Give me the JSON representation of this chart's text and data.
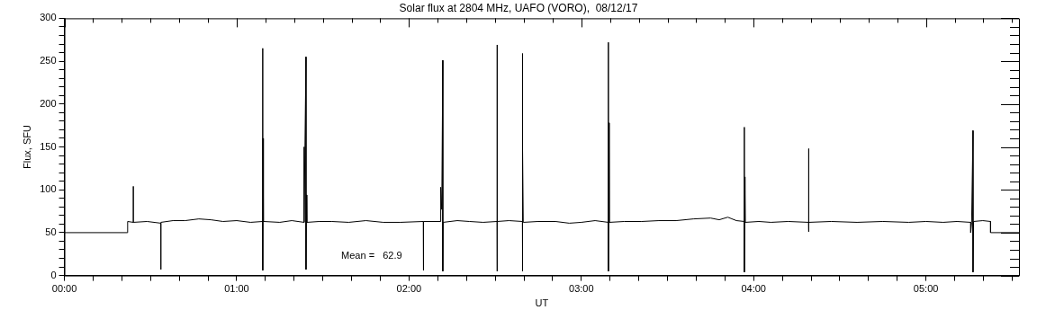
{
  "chart_data": {
    "type": "line",
    "title": "Solar flux at 2804 MHz, UAFO (VORO),  08/12/17",
    "xlabel": "UT",
    "ylabel": "Flux, SFU",
    "annotations": [
      "Mean =   62.9"
    ],
    "x": [
      0,
      0.367,
      0.367,
      0.4,
      0.4,
      0.4,
      0.48,
      0.56,
      0.56,
      0.56,
      0.63,
      0.7,
      0.78,
      0.85,
      0.92,
      1.0,
      1.08,
      1.151,
      1.151,
      1.151,
      1.153,
      1.155,
      1.25,
      1.32,
      1.391,
      1.391,
      1.391,
      1.402,
      1.402,
      1.405,
      1.407,
      1.48,
      1.55,
      1.65,
      1.75,
      1.85,
      1.95,
      2.083,
      2.083,
      2.085,
      2.184,
      2.184,
      2.19,
      2.196,
      2.196,
      2.198,
      2.28,
      2.35,
      2.43,
      2.511,
      2.511,
      2.511,
      2.513,
      2.58,
      2.658,
      2.658,
      2.658,
      2.661,
      2.663,
      2.75,
      2.85,
      2.93,
      3.0,
      3.08,
      3.157,
      3.157,
      3.157,
      3.16,
      3.162,
      3.25,
      3.35,
      3.45,
      3.55,
      3.65,
      3.75,
      3.8,
      3.85,
      3.9,
      3.946,
      3.946,
      3.946,
      3.95,
      3.952,
      4.03,
      4.1,
      4.2,
      4.319,
      4.319,
      4.319,
      4.321,
      4.45,
      4.6,
      4.75,
      4.9,
      5.0,
      5.1,
      5.18,
      5.26,
      5.26,
      5.265,
      5.273,
      5.273,
      5.276,
      5.33,
      5.375,
      5.375,
      5.54
    ],
    "values": [
      50,
      50,
      63,
      62,
      104,
      62,
      63,
      61,
      7,
      62,
      64,
      64,
      66,
      65,
      63,
      64,
      62,
      63,
      265,
      6,
      160,
      63,
      62,
      64,
      62,
      150,
      62,
      255,
      7,
      94,
      62,
      63,
      63,
      62,
      64,
      62,
      62,
      63,
      6,
      63,
      63,
      103,
      77,
      251,
      5,
      62,
      64,
      63,
      62,
      63,
      269,
      5,
      63,
      64,
      63,
      259,
      5,
      146,
      62,
      63,
      63,
      61,
      62,
      64,
      62,
      272,
      5,
      178,
      62,
      63,
      63,
      64,
      64,
      66,
      67,
      65,
      68,
      64,
      63,
      173,
      4,
      115,
      62,
      63,
      62,
      63,
      62,
      148,
      51,
      62,
      63,
      62,
      63,
      62,
      63,
      62,
      63,
      62,
      50,
      62,
      169,
      4,
      63,
      64,
      63,
      50,
      50
    ],
    "color": "#000000",
    "marker": "none",
    "line_style": "solid",
    "grid": false,
    "legend": false,
    "xlim": [
      0,
      5.54
    ],
    "xticks": [
      {
        "value": 0,
        "label": "00:00"
      },
      {
        "value": 0.1667,
        "label": null
      },
      {
        "value": 0.3333,
        "label": null
      },
      {
        "value": 0.5,
        "label": null
      },
      {
        "value": 0.6667,
        "label": null
      },
      {
        "value": 0.8333,
        "label": null
      },
      {
        "value": 1,
        "label": "01:00"
      },
      {
        "value": 1.1667,
        "label": null
      },
      {
        "value": 1.3333,
        "label": null
      },
      {
        "value": 1.5,
        "label": null
      },
      {
        "value": 1.6667,
        "label": null
      },
      {
        "value": 1.8333,
        "label": null
      },
      {
        "value": 2,
        "label": "02:00"
      },
      {
        "value": 2.1667,
        "label": null
      },
      {
        "value": 2.3333,
        "label": null
      },
      {
        "value": 2.5,
        "label": null
      },
      {
        "value": 2.6667,
        "label": null
      },
      {
        "value": 2.8333,
        "label": null
      },
      {
        "value": 3,
        "label": "03:00"
      },
      {
        "value": 3.1667,
        "label": null
      },
      {
        "value": 3.3333,
        "label": null
      },
      {
        "value": 3.5,
        "label": null
      },
      {
        "value": 3.6667,
        "label": null
      },
      {
        "value": 3.8333,
        "label": null
      },
      {
        "value": 4,
        "label": "04:00"
      },
      {
        "value": 4.1667,
        "label": null
      },
      {
        "value": 4.3333,
        "label": null
      },
      {
        "value": 4.5,
        "label": null
      },
      {
        "value": 4.6667,
        "label": null
      },
      {
        "value": 4.8333,
        "label": null
      },
      {
        "value": 5,
        "label": "05:00"
      },
      {
        "value": 5.1667,
        "label": null
      },
      {
        "value": 5.3333,
        "label": null
      },
      {
        "value": 5.5,
        "label": null
      }
    ],
    "ylim": [
      0,
      300
    ],
    "yticks": [
      0,
      {
        "value": 10,
        "label": null
      },
      {
        "value": 20,
        "label": null
      },
      {
        "value": 30,
        "label": null
      },
      {
        "value": 40,
        "label": null
      },
      50,
      {
        "value": 60,
        "label": null
      },
      {
        "value": 70,
        "label": null
      },
      {
        "value": 80,
        "label": null
      },
      {
        "value": 90,
        "label": null
      },
      100,
      {
        "value": 110,
        "label": null
      },
      {
        "value": 120,
        "label": null
      },
      {
        "value": 130,
        "label": null
      },
      {
        "value": 140,
        "label": null
      },
      150,
      {
        "value": 160,
        "label": null
      },
      {
        "value": 170,
        "label": null
      },
      {
        "value": 180,
        "label": null
      },
      {
        "value": 190,
        "label": null
      },
      200,
      {
        "value": 210,
        "label": null
      },
      {
        "value": 220,
        "label": null
      },
      {
        "value": 230,
        "label": null
      },
      {
        "value": 240,
        "label": null
      },
      250,
      {
        "value": 260,
        "label": null
      },
      {
        "value": 270,
        "label": null
      },
      {
        "value": 280,
        "label": null
      },
      {
        "value": 290,
        "label": null
      },
      300
    ]
  }
}
